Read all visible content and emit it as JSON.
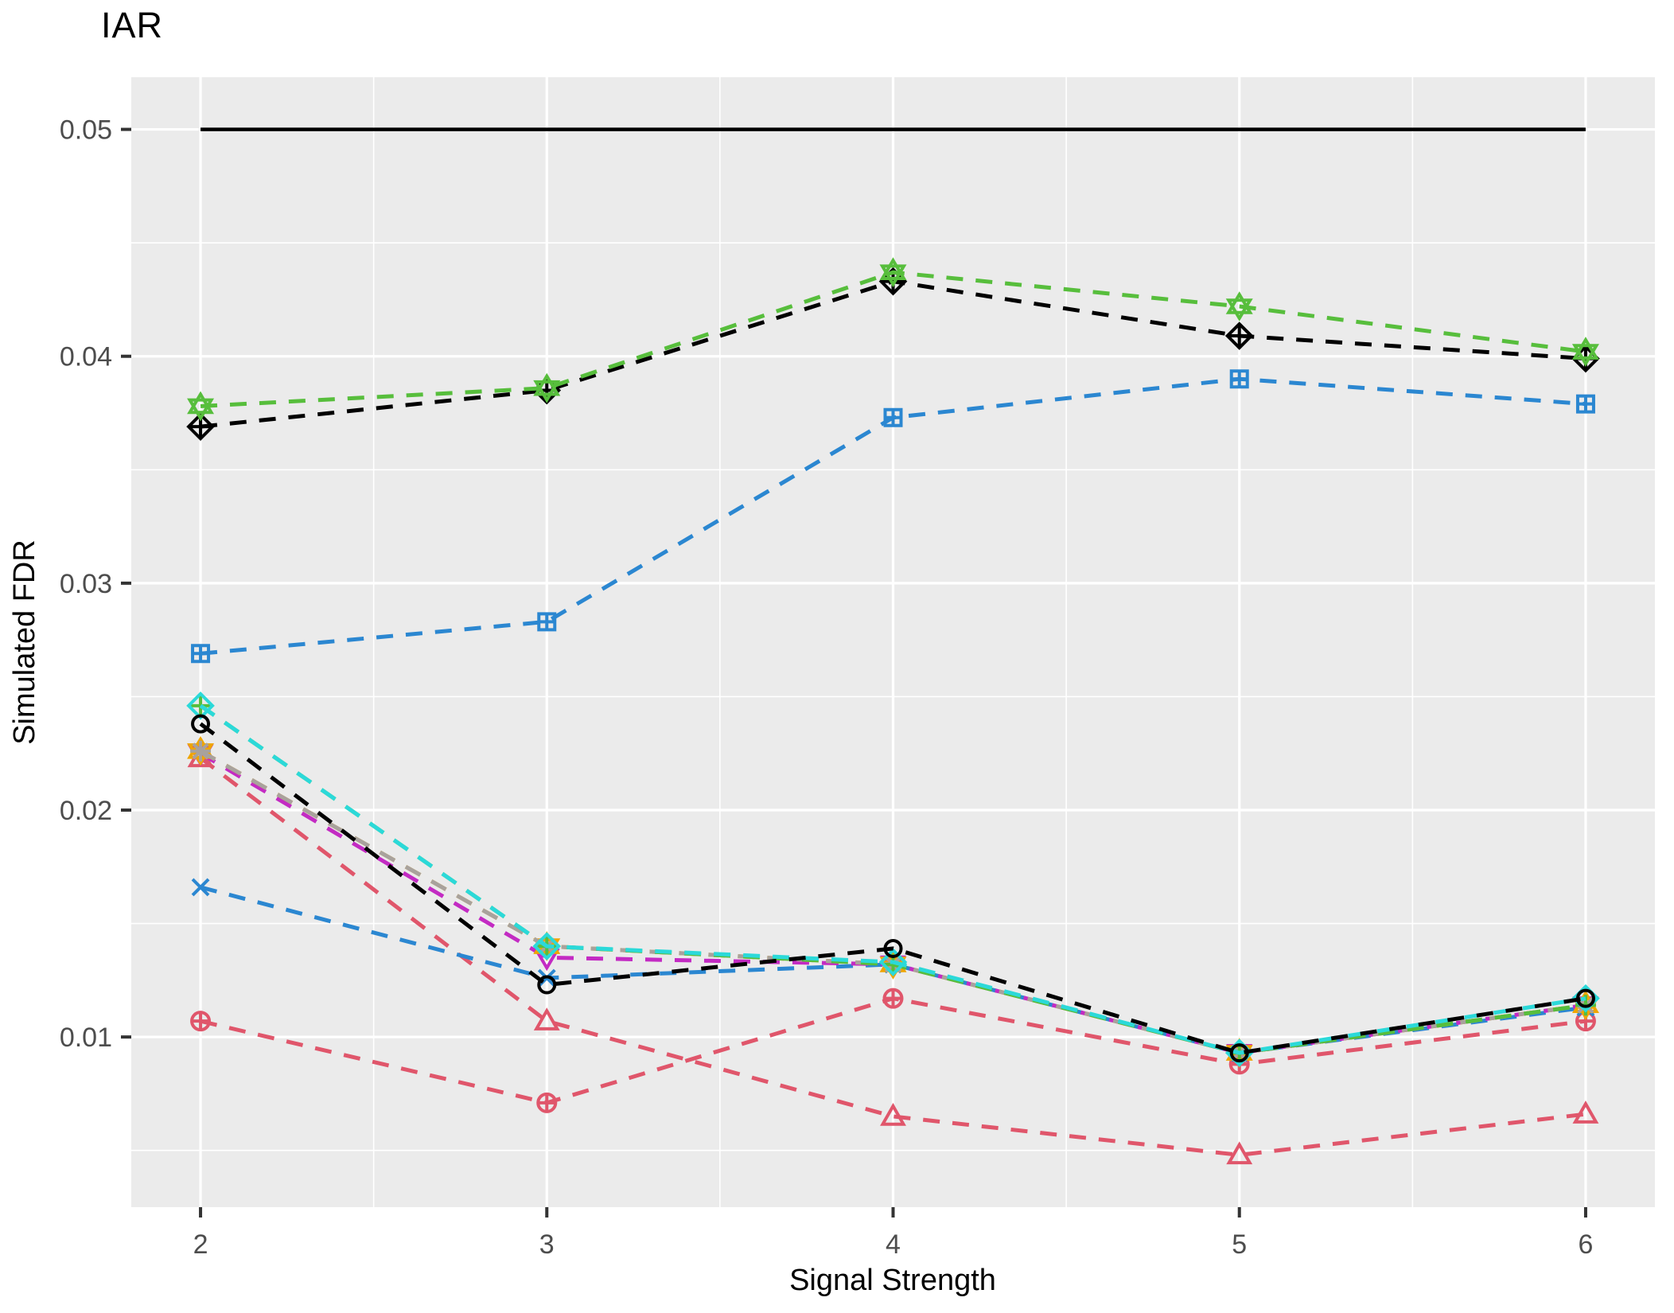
{
  "title": "IAR",
  "panel": {
    "background_color": "#EBEBEB",
    "grid_color": "#FFFFFF",
    "tick_color": "#333333",
    "tick_label_color": "#4D4D4D"
  },
  "chart_data": {
    "type": "line",
    "title": "IAR",
    "xlabel": "Signal Strength",
    "ylabel": "Simulated FDR",
    "x": [
      2,
      3,
      4,
      5,
      6
    ],
    "x_tick_labels": [
      "2",
      "3",
      "4",
      "5",
      "6"
    ],
    "y_ticks": [
      0.01,
      0.02,
      0.03,
      0.04,
      0.05
    ],
    "y_tick_labels": [
      "0.01",
      "0.02",
      "0.03",
      "0.04",
      "0.05"
    ],
    "x_range": [
      1.8,
      6.2
    ],
    "y_range": [
      0.0025,
      0.0523
    ],
    "x_minor_gridlines": [
      2.5,
      3.5,
      4.5,
      5.5
    ],
    "y_minor_gridlines": [
      0.005,
      0.015,
      0.025,
      0.035,
      0.045
    ],
    "grid": true,
    "legend_position": "none",
    "reference_line": {
      "name": "alpha-level",
      "value": 0.05,
      "color": "#000000",
      "linestyle": "solid"
    },
    "series": [
      {
        "name": "red-triangle",
        "color": "#E0566B",
        "marker": "triangle-up",
        "linestyle": "dashed",
        "values": [
          0.0223,
          0.0107,
          0.0065,
          0.0048,
          0.0066
        ]
      },
      {
        "name": "red-circle-plus",
        "color": "#E0566B",
        "marker": "circle-plus",
        "linestyle": "dashed",
        "values": [
          0.0107,
          0.0071,
          0.0117,
          0.0088,
          0.0107
        ]
      },
      {
        "name": "blue-x",
        "color": "#2B87D1",
        "marker": "x",
        "linestyle": "dashed",
        "values": [
          0.0166,
          0.0126,
          0.0132,
          0.0093,
          0.0113
        ]
      },
      {
        "name": "magenta-triangle-down",
        "color": "#C32BC3",
        "marker": "triangle-down",
        "linestyle": "dashed",
        "values": [
          0.0225,
          0.0135,
          0.0132,
          0.0093,
          0.0114
        ]
      },
      {
        "name": "orange-star",
        "color": "#EFA500",
        "marker": "star6",
        "linestyle": "dashed",
        "values": [
          0.0226,
          0.014,
          0.0132,
          0.0093,
          0.0114
        ]
      },
      {
        "name": "gray-asterisk",
        "color": "#A8A29D",
        "marker": "asterisk8",
        "linestyle": "dashed",
        "values": [
          0.0226,
          0.014,
          0.0132,
          0.0093,
          0.0114
        ]
      },
      {
        "name": "green-plus",
        "color": "#57BE3C",
        "marker": "plus",
        "linestyle": "dashed",
        "values": [
          0.0246,
          0.014,
          0.0132,
          0.0093,
          0.0114
        ]
      },
      {
        "name": "cyan-diamond",
        "color": "#2BD9D9",
        "marker": "diamond",
        "linestyle": "dashed",
        "values": [
          0.0246,
          0.014,
          0.0133,
          0.0093,
          0.0117
        ]
      },
      {
        "name": "black-circle",
        "color": "#000000",
        "marker": "circle",
        "linestyle": "dashed",
        "values": [
          0.0238,
          0.0123,
          0.0139,
          0.0093,
          0.0117
        ]
      },
      {
        "name": "blue-square-plus",
        "color": "#2B87D1",
        "marker": "square-plus",
        "linestyle": "dashed",
        "values": [
          0.0269,
          0.0283,
          0.0373,
          0.039,
          0.0379
        ]
      },
      {
        "name": "black-diamond-plus",
        "color": "#000000",
        "marker": "diamond-plus",
        "linestyle": "dashed",
        "values": [
          0.0369,
          0.0385,
          0.0433,
          0.0409,
          0.0399
        ]
      },
      {
        "name": "green-star",
        "color": "#57BE3C",
        "marker": "star6",
        "linestyle": "dashed",
        "values": [
          0.0378,
          0.0386,
          0.0437,
          0.0422,
          0.0402
        ]
      }
    ]
  }
}
